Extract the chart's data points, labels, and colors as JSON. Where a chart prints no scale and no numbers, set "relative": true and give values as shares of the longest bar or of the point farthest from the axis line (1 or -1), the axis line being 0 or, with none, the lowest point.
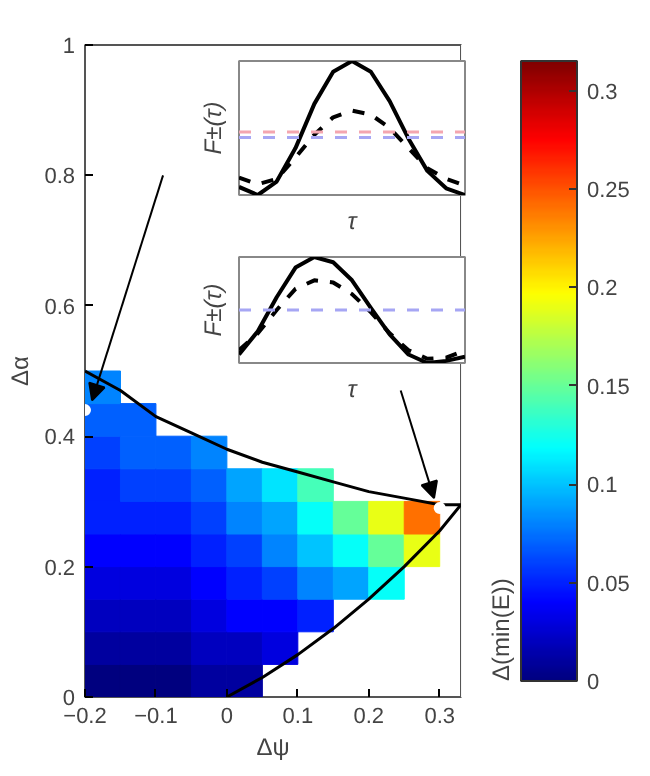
{
  "chart_data": [
    {
      "type": "scatter",
      "xlabel": "Δψ",
      "ylabel": "Δα",
      "clabel": "Δ(min(E))",
      "xlim": [
        -0.2,
        0.33
      ],
      "ylim": [
        0,
        1
      ],
      "xticks": [
        -0.2,
        -0.1,
        0,
        0.1,
        0.2,
        0.3
      ],
      "yticks": [
        0,
        0.2,
        0.4,
        0.6,
        0.8,
        1
      ],
      "clim": [
        0,
        0.315
      ],
      "cticks": [
        0,
        0.05,
        0.1,
        0.15,
        0.2,
        0.25,
        0.3
      ],
      "grid": false,
      "series": [
        {
          "type": "scatter",
          "marker": "square",
          "x": [
            -0.175,
            -0.175,
            -0.175,
            -0.175,
            -0.175,
            -0.175,
            -0.175,
            -0.175,
            -0.175,
            -0.175,
            -0.125,
            -0.125,
            -0.125,
            -0.125,
            -0.125,
            -0.125,
            -0.125,
            -0.125,
            -0.125,
            -0.075,
            -0.075,
            -0.075,
            -0.075,
            -0.075,
            -0.075,
            -0.075,
            -0.075,
            -0.025,
            -0.025,
            -0.025,
            -0.025,
            -0.025,
            -0.025,
            -0.025,
            -0.025,
            0.025,
            0.025,
            0.025,
            0.025,
            0.025,
            0.025,
            0.025,
            0.075,
            0.075,
            0.075,
            0.075,
            0.075,
            0.075,
            0.125,
            0.125,
            0.125,
            0.125,
            0.125,
            0.175,
            0.175,
            0.175,
            0.225,
            0.225,
            0.225,
            0.275,
            0.275
          ],
          "values": [
            0.025,
            0.075,
            0.125,
            0.175,
            0.225,
            0.275,
            0.325,
            0.375,
            0.425,
            0.475,
            0.025,
            0.075,
            0.125,
            0.175,
            0.225,
            0.275,
            0.325,
            0.375,
            0.425,
            0.025,
            0.075,
            0.125,
            0.175,
            0.225,
            0.275,
            0.325,
            0.375,
            0.025,
            0.075,
            0.125,
            0.175,
            0.225,
            0.275,
            0.325,
            0.375,
            0.025,
            0.075,
            0.125,
            0.175,
            0.225,
            0.275,
            0.325,
            0.075,
            0.125,
            0.175,
            0.225,
            0.275,
            0.325,
            0.125,
            0.175,
            0.225,
            0.275,
            0.325,
            0.175,
            0.225,
            0.275,
            0.175,
            0.225,
            0.275,
            0.225,
            0.275
          ],
          "colors": [
            "#00007f",
            "#00009f",
            "#0000bf",
            "#0000df",
            "#0000ff",
            "#0020ff",
            "#0020ff",
            "#0040ff",
            "#0060ff",
            "#0084ff",
            "#00007f",
            "#00009f",
            "#0000bf",
            "#0000df",
            "#0000ff",
            "#0020ff",
            "#0040ff",
            "#0060ff",
            "#0060ff",
            "#00007f",
            "#00009f",
            "#0000bf",
            "#0000df",
            "#0000ff",
            "#0020ff",
            "#0040ff",
            "#0060ff",
            "#00009f",
            "#0000bf",
            "#0000df",
            "#0000ff",
            "#0020ff",
            "#0040ff",
            "#0060ff",
            "#0084ff",
            "#00009f",
            "#0000bf",
            "#0000ff",
            "#0020ff",
            "#0040ff",
            "#0084ff",
            "#00a4ff",
            "#0000df",
            "#0000ff",
            "#0040ff",
            "#0084ff",
            "#00a4ff",
            "#00e4ff",
            "#0020ff",
            "#0084ff",
            "#00c4ff",
            "#05fff9",
            "#45ffb9",
            "#00a4ff",
            "#05fff9",
            "#65ff99",
            "#05fff9",
            "#65ff99",
            "#e9ff15",
            "#e9ff15",
            "#ff7000"
          ],
          "cvalues": [
            0,
            0.01,
            0.02,
            0.03,
            0.04,
            0.05,
            0.05,
            0.06,
            0.07,
            0.08,
            0,
            0.01,
            0.02,
            0.03,
            0.04,
            0.05,
            0.06,
            0.07,
            0.07,
            0,
            0.01,
            0.02,
            0.03,
            0.04,
            0.05,
            0.06,
            0.07,
            0.01,
            0.02,
            0.03,
            0.04,
            0.05,
            0.06,
            0.07,
            0.08,
            0.01,
            0.02,
            0.04,
            0.05,
            0.06,
            0.08,
            0.09,
            0.03,
            0.04,
            0.06,
            0.08,
            0.09,
            0.11,
            0.05,
            0.08,
            0.1,
            0.12,
            0.14,
            0.09,
            0.12,
            0.15,
            0.12,
            0.15,
            0.19,
            0.19,
            0.24
          ]
        },
        {
          "type": "line",
          "color": "#000000",
          "x": [
            -0.2,
            -0.15,
            -0.1,
            -0.05,
            0,
            0.05,
            0.1,
            0.15,
            0.2,
            0.25,
            0.3,
            0.33
          ],
          "values": [
            0.5,
            0.47,
            0.43,
            0.405,
            0.38,
            0.36,
            0.345,
            0.33,
            0.315,
            0.305,
            0.295,
            0.295
          ]
        },
        {
          "type": "line",
          "color": "#000000",
          "x": [
            0,
            0.05,
            0.1,
            0.15,
            0.2,
            0.25,
            0.3,
            0.33
          ],
          "values": [
            0,
            0.03,
            0.065,
            0.105,
            0.15,
            0.2,
            0.255,
            0.295
          ]
        },
        {
          "type": "scatter",
          "marker": "circle",
          "color": "#ffffff",
          "x": [
            -0.2,
            0.3
          ],
          "values": [
            0.44,
            0.29
          ]
        }
      ]
    },
    {
      "type": "line",
      "relative": true,
      "xlabel": "τ",
      "ylabel": "F±(τ)",
      "categories": [
        null,
        null,
        null,
        null,
        null,
        null,
        null,
        null,
        null,
        null,
        null,
        null,
        null
      ],
      "series": [
        {
          "color": "#000000",
          "line_style": "solid",
          "values": [
            0.06,
            0,
            0.1,
            0.35,
            0.68,
            0.92,
            1.0,
            0.92,
            0.7,
            0.42,
            0.18,
            0.05,
            0.0
          ]
        },
        {
          "color": "#000000",
          "line_style": "dashed",
          "values": [
            0.13,
            0.08,
            0.12,
            0.28,
            0.45,
            0.58,
            0.63,
            0.6,
            0.5,
            0.35,
            0.2,
            0.12,
            0.07
          ]
        }
      ],
      "ref_lines": [
        {
          "axis": "y",
          "value": 0.47,
          "color": "#f4a6b0",
          "line_style": "dashed"
        },
        {
          "axis": "y",
          "value": 0.43,
          "color": "#a6a6f4",
          "line_style": "dashed"
        }
      ]
    },
    {
      "type": "line",
      "relative": true,
      "xlabel": "τ",
      "ylabel": "F±(τ)",
      "categories": [
        null,
        null,
        null,
        null,
        null,
        null,
        null,
        null,
        null,
        null,
        null,
        null,
        null
      ],
      "series": [
        {
          "color": "#000000",
          "line_style": "solid",
          "values": [
            0.08,
            0.3,
            0.62,
            0.9,
            1.0,
            0.95,
            0.78,
            0.52,
            0.27,
            0.08,
            0.0,
            0.02,
            0.06
          ]
        },
        {
          "color": "#000000",
          "line_style": "dashed",
          "values": [
            0.12,
            0.28,
            0.5,
            0.7,
            0.78,
            0.76,
            0.65,
            0.48,
            0.28,
            0.12,
            0.04,
            0.05,
            0.12
          ]
        }
      ],
      "ref_lines": [
        {
          "axis": "y",
          "value": 0.5,
          "color": "#a6a6f4",
          "line_style": "dashed"
        }
      ]
    }
  ]
}
